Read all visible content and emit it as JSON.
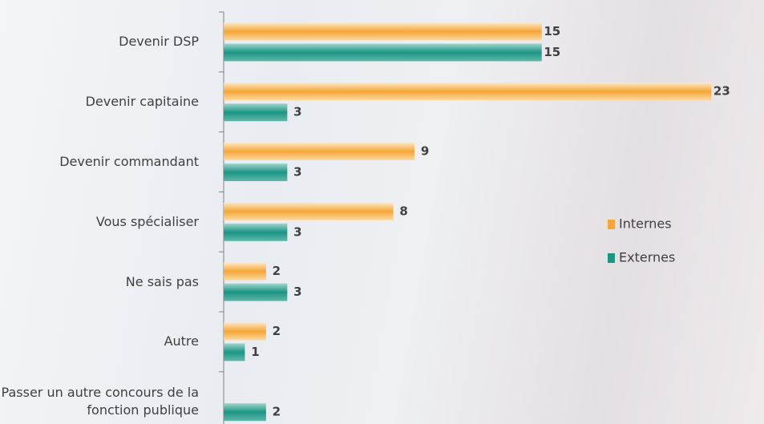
{
  "chart_data": {
    "type": "bar",
    "orientation": "horizontal",
    "categories": [
      "Devenir DSP",
      "Devenir capitaine",
      "Devenir commandant",
      "Vous spécialiser",
      "Ne sais pas",
      "Autre",
      "Passer un autre concours de la fonction publique"
    ],
    "series": [
      {
        "name": "Internes",
        "color": "#f5a636",
        "values": [
          15,
          23,
          9,
          8,
          2,
          2,
          null
        ]
      },
      {
        "name": "Externes",
        "color": "#1b9585",
        "values": [
          15,
          3,
          3,
          3,
          3,
          1,
          2
        ]
      }
    ],
    "legend": "right"
  }
}
